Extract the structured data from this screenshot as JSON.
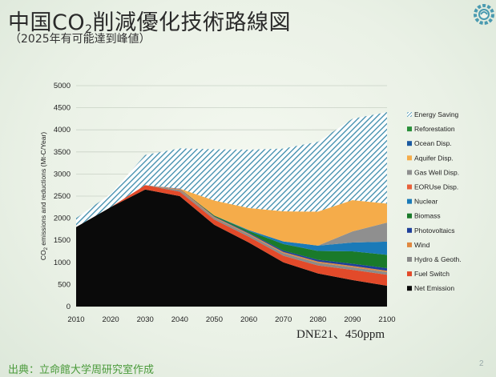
{
  "slide": {
    "title_main": "中国CO",
    "title_sub": "2",
    "title_rest": "削減優化技術路線図",
    "subtitle": "（2025年有可能達到峰値）",
    "source": "出典：立命館大学周研究室作成",
    "page_number": "2",
    "logo_icon": "gear-logo-icon"
  },
  "chart_data": {
    "type": "area",
    "stacked": true,
    "x": [
      2010,
      2020,
      2030,
      2040,
      2050,
      2060,
      2070,
      2080,
      2090,
      2100
    ],
    "x_ticks": [
      "2010",
      "2020",
      "2030",
      "2040",
      "2050",
      "2060",
      "2070",
      "2080",
      "2090",
      "2100"
    ],
    "ylim": [
      0,
      5000
    ],
    "y_ticks": [
      "0",
      "500",
      "1000",
      "1500",
      "2000",
      "2500",
      "3000",
      "3500",
      "4000",
      "4500",
      "5000"
    ],
    "ylabel_pre": "CO",
    "ylabel_sub": "2",
    "ylabel_post": " emissions and reductions (Mt-C/Year)",
    "annotation": "DNE21、450ppm",
    "grid": true,
    "legend_position": "right",
    "series": [
      {
        "name": "Net Emission",
        "color": "#0a0a0a",
        "values": [
          1800,
          2250,
          2650,
          2500,
          1850,
          1450,
          1000,
          750,
          600,
          470
        ]
      },
      {
        "name": "Fuel Switch",
        "color": "#e24a2a",
        "values": [
          0,
          0,
          100,
          100,
          120,
          130,
          150,
          180,
          230,
          250
        ]
      },
      {
        "name": "Hydro & Geoth.",
        "color": "#8a8a8a",
        "values": [
          0,
          0,
          0,
          40,
          40,
          50,
          60,
          60,
          60,
          60
        ]
      },
      {
        "name": "Wind",
        "color": "#e08840",
        "values": [
          0,
          0,
          0,
          20,
          20,
          20,
          25,
          30,
          30,
          30
        ]
      },
      {
        "name": "Photovoltaics",
        "color": "#1f3f9a",
        "values": [
          0,
          0,
          0,
          10,
          10,
          20,
          30,
          40,
          50,
          60
        ]
      },
      {
        "name": "Biomass",
        "color": "#1a7a2a",
        "values": [
          0,
          0,
          0,
          0,
          20,
          40,
          150,
          200,
          280,
          300
        ]
      },
      {
        "name": "Nuclear",
        "color": "#1a7ab8",
        "values": [
          0,
          0,
          0,
          0,
          0,
          20,
          60,
          120,
          200,
          300
        ]
      },
      {
        "name": "EORUse Disp.",
        "color": "#e8603a",
        "values": [
          0,
          0,
          0,
          0,
          0,
          0,
          0,
          0,
          0,
          0
        ]
      },
      {
        "name": "Gas Well Disp.",
        "color": "#8f8f8f",
        "values": [
          0,
          0,
          0,
          0,
          0,
          0,
          0,
          0,
          250,
          430
        ]
      },
      {
        "name": "Aquifer Disp.",
        "color": "#f5ac4a",
        "values": [
          0,
          0,
          0,
          0,
          340,
          500,
          680,
          770,
          710,
          430
        ]
      },
      {
        "name": "Ocean Disp.",
        "color": "#1a5aa0",
        "values": [
          0,
          0,
          0,
          0,
          0,
          0,
          0,
          0,
          0,
          0
        ]
      },
      {
        "name": "Reforestation",
        "color": "#2a8f3a",
        "values": [
          0,
          0,
          0,
          0,
          0,
          0,
          0,
          0,
          0,
          0
        ]
      },
      {
        "name": "Energy Saving",
        "color": "#3a8aaa",
        "pattern": "diagonal-hatch",
        "values": [
          200,
          300,
          680,
          910,
          1160,
          1320,
          1420,
          1580,
          1840,
          2070
        ]
      }
    ]
  }
}
